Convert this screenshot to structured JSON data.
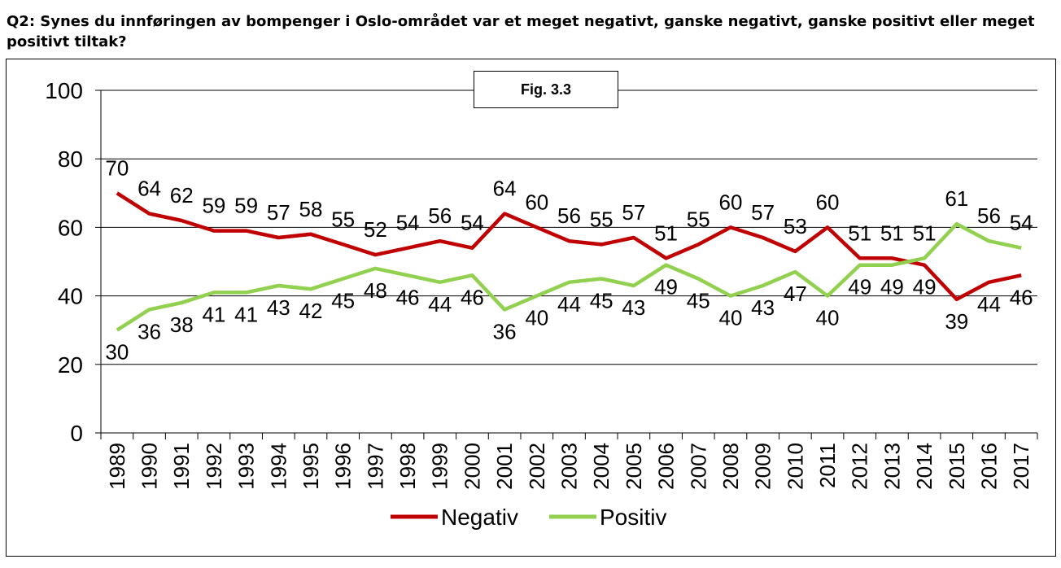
{
  "question": "Q2: Synes du innføringen av bompenger i Oslo-området var et meget negativt, ganske negativt, ganske positivt eller meget positivt tiltak?",
  "figure_label": "Fig. 3.3",
  "colors": {
    "negativ": "#c00000",
    "positiv": "#92d050",
    "grid": "#000000"
  },
  "chart_data": {
    "type": "line",
    "title": "Q2: Synes du innføringen av bompenger i Oslo-området var et meget negativt, ganske negativt, ganske positivt eller meget positivt tiltak?",
    "categories": [
      "1989",
      "1990",
      "1991",
      "1992",
      "1993",
      "1994",
      "1995",
      "1996",
      "1997",
      "1998",
      "1999",
      "2000",
      "2001",
      "2002",
      "2003",
      "2004",
      "2005",
      "2006",
      "2007",
      "2008",
      "2009",
      "2010",
      "2011",
      "2012",
      "2013",
      "2014",
      "2015",
      "2016",
      "2017"
    ],
    "series": [
      {
        "name": "Negativ",
        "color": "#c00000",
        "values": [
          70,
          64,
          62,
          59,
          59,
          57,
          58,
          55,
          52,
          54,
          56,
          54,
          64,
          60,
          56,
          55,
          57,
          51,
          55,
          60,
          57,
          53,
          60,
          51,
          51,
          49,
          39,
          44,
          46
        ]
      },
      {
        "name": "Positiv",
        "color": "#92d050",
        "values": [
          30,
          36,
          38,
          41,
          41,
          43,
          42,
          45,
          48,
          46,
          44,
          46,
          36,
          40,
          44,
          45,
          43,
          49,
          45,
          40,
          43,
          47,
          40,
          49,
          49,
          51,
          61,
          56,
          54
        ]
      }
    ],
    "ylim": [
      0,
      100
    ],
    "yticks": [
      0,
      20,
      40,
      60,
      80,
      100
    ],
    "xlabel": "",
    "ylabel": "",
    "grid": true,
    "legend": "bottom-center",
    "data_labels": true
  }
}
